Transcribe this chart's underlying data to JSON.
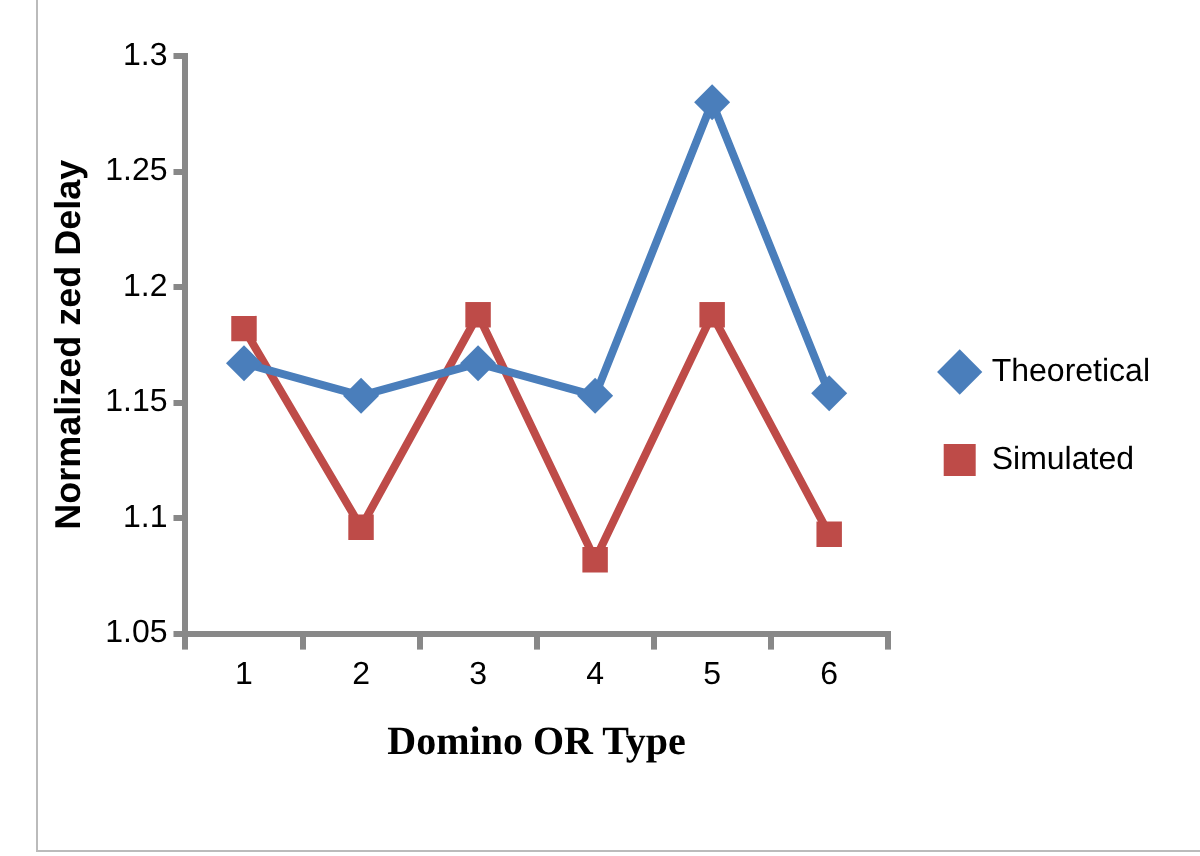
{
  "chart_data": {
    "type": "line",
    "xlabel": "Domino OR Type",
    "ylabel": "Normalized zed Delay",
    "categories": [
      "1",
      "2",
      "3",
      "4",
      "5",
      "6"
    ],
    "series": [
      {
        "name": "Theoretical",
        "color": "#4a7ebb",
        "marker": "diamond",
        "values": [
          1.167,
          1.153,
          1.167,
          1.153,
          1.28,
          1.154
        ]
      },
      {
        "name": "Simulated",
        "color": "#be4b48",
        "marker": "square",
        "values": [
          1.182,
          1.096,
          1.188,
          1.082,
          1.188,
          1.093
        ]
      }
    ],
    "ylim": [
      1.05,
      1.3
    ],
    "yticks": [
      1.05,
      1.1,
      1.15,
      1.2,
      1.25,
      1.3
    ],
    "grid": false,
    "legend": "right"
  }
}
